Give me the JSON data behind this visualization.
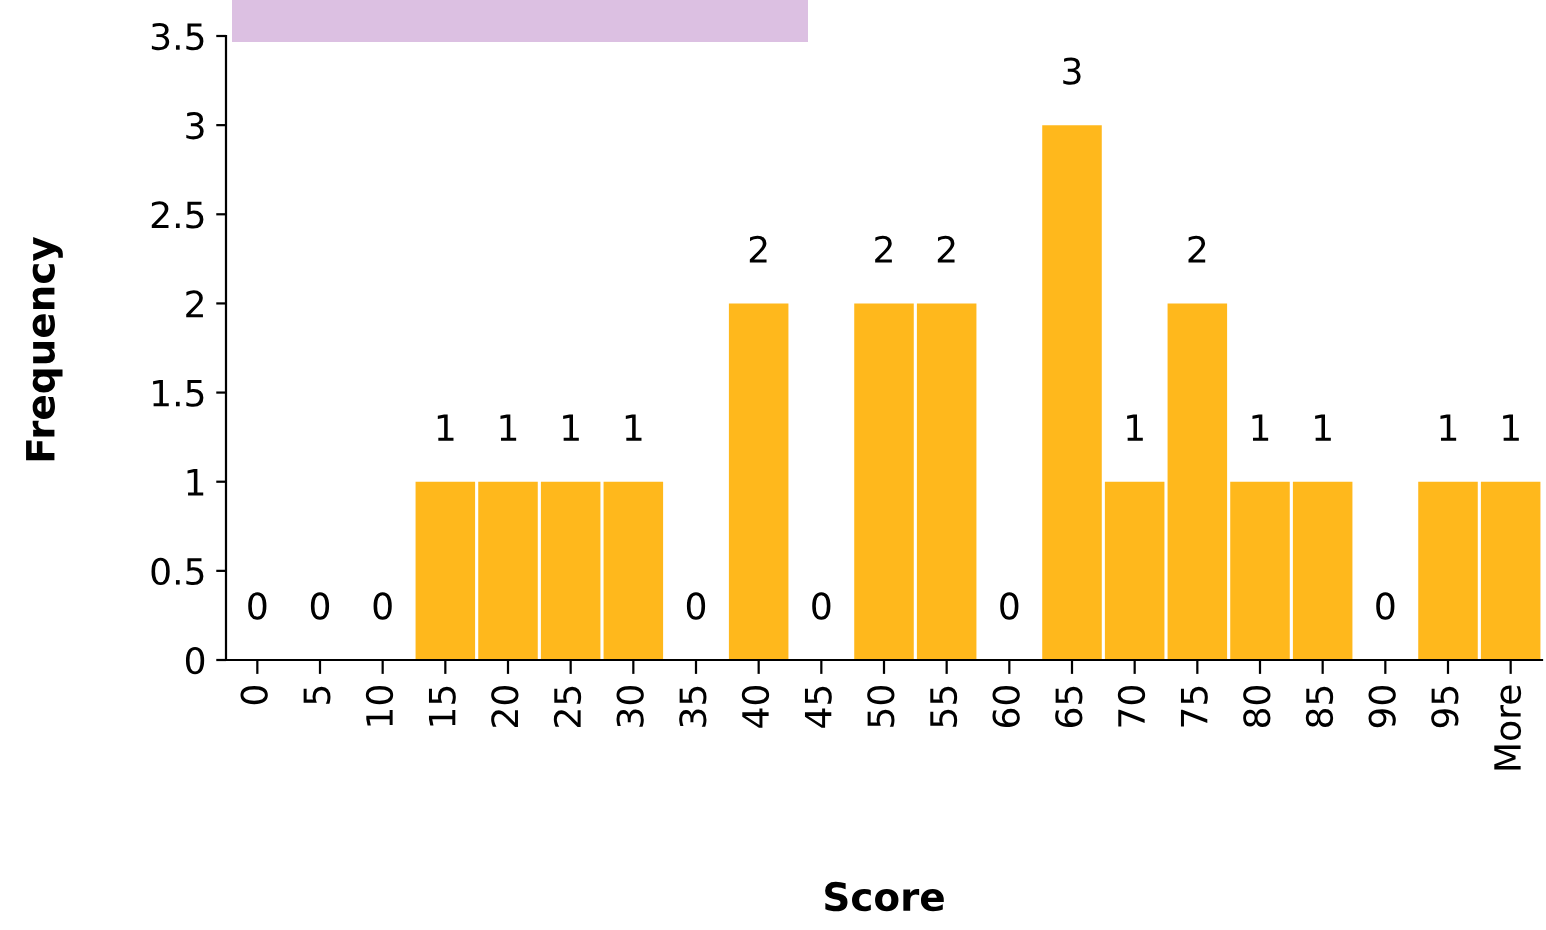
{
  "chart_data": {
    "type": "bar",
    "xlabel": "Score",
    "ylabel": "Frequency",
    "categories": [
      "0",
      "5",
      "10",
      "15",
      "20",
      "25",
      "30",
      "35",
      "40",
      "45",
      "50",
      "55",
      "60",
      "65",
      "70",
      "75",
      "80",
      "85",
      "90",
      "95",
      "More"
    ],
    "values": [
      0,
      0,
      0,
      1,
      1,
      1,
      1,
      0,
      2,
      0,
      2,
      2,
      0,
      3,
      1,
      2,
      1,
      1,
      0,
      1,
      1
    ],
    "color": "#ffb81c",
    "ylim": [
      0,
      3.5
    ],
    "yticks": [
      0,
      0.5,
      1,
      1.5,
      2,
      2.5,
      3,
      3.5
    ],
    "grid": false,
    "legend": false,
    "data_labels": true
  }
}
